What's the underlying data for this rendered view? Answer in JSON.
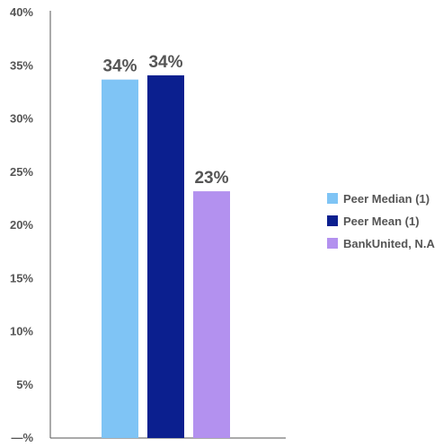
{
  "chart_data": {
    "type": "bar",
    "categories": [
      "Peer Median (1)",
      "Peer Mean (1)",
      "BankUnited, N.A"
    ],
    "values": [
      0.337,
      0.341,
      0.232
    ],
    "data_labels": [
      "34%",
      "34%",
      "23%"
    ],
    "colors": [
      "#7fc4f5",
      "#0b1f8f",
      "#b391ef"
    ],
    "y_ticks": [
      {
        "value": 0,
        "label": "—%"
      },
      {
        "value": 0.05,
        "label": "5%"
      },
      {
        "value": 0.1,
        "label": "10%"
      },
      {
        "value": 0.15,
        "label": "15%"
      },
      {
        "value": 0.2,
        "label": "20%"
      },
      {
        "value": 0.25,
        "label": "25%"
      },
      {
        "value": 0.3,
        "label": "30%"
      },
      {
        "value": 0.35,
        "label": "35%"
      },
      {
        "value": 0.4,
        "label": "40%"
      }
    ],
    "ylim": [
      0,
      0.4
    ],
    "grid": false,
    "legend": "right",
    "legend_entries": [
      "Peer Median (1)",
      "Peer Mean (1)",
      "BankUnited, N.A"
    ]
  }
}
